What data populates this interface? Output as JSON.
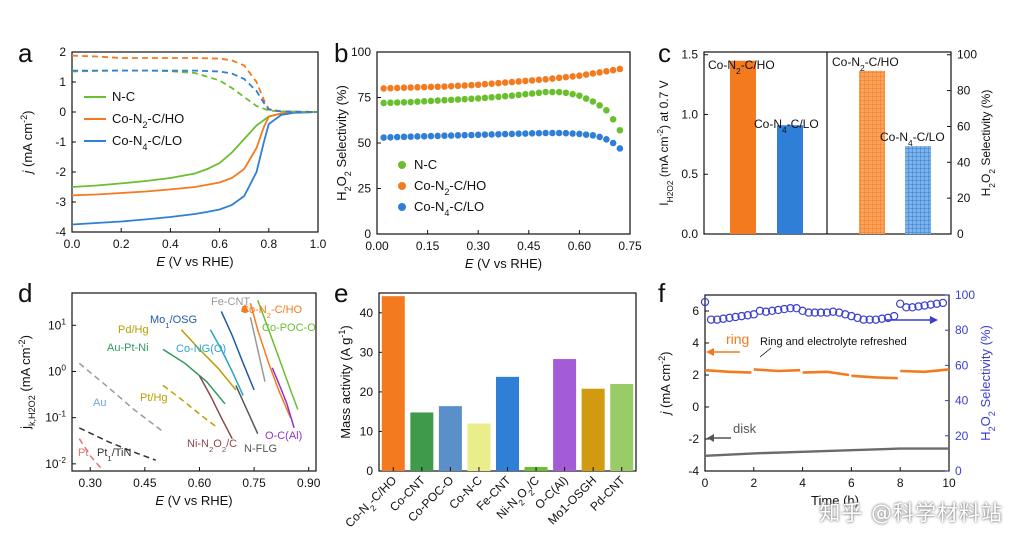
{
  "figure": {
    "watermark": "知乎 @科学材料站",
    "panel_letters": [
      "a",
      "b",
      "c",
      "d",
      "e",
      "f"
    ]
  },
  "colors": {
    "nc": "#6abf2e",
    "ho": "#f47a20",
    "lo": "#2f7fd6",
    "disk": "#6b6b6b",
    "ring": "#f47a20",
    "selectivity": "#3b3fcf"
  },
  "chart_data": [
    {
      "panel": "a",
      "type": "line",
      "xlabel": "E (V vs RHE)",
      "ylabel": "j (mA cm-2)",
      "xlim": [
        0,
        1.0
      ],
      "ylim": [
        -4,
        2
      ],
      "xticks": [
        "0.0",
        "0.2",
        "0.4",
        "0.6",
        "0.8",
        "1.0"
      ],
      "yticks": [
        "-4",
        "-3",
        "-2",
        "-1",
        "0",
        "1",
        "2"
      ],
      "legend": [
        "N-C",
        "Co-N2-C/HO",
        "Co-N4-C/LO"
      ],
      "series": [
        {
          "name": "N-C",
          "style": "solid",
          "color": "#6abf2e",
          "x": [
            0,
            0.1,
            0.2,
            0.3,
            0.4,
            0.5,
            0.55,
            0.6,
            0.65,
            0.7,
            0.75,
            0.8,
            0.85,
            0.9,
            1.0
          ],
          "y": [
            -2.5,
            -2.45,
            -2.38,
            -2.3,
            -2.2,
            -2.05,
            -1.9,
            -1.7,
            -1.35,
            -0.9,
            -0.45,
            -0.15,
            -0.05,
            -0.02,
            0
          ]
        },
        {
          "name": "Co-N2-C/HO",
          "style": "solid",
          "color": "#f47a20",
          "x": [
            0,
            0.1,
            0.2,
            0.3,
            0.4,
            0.5,
            0.6,
            0.65,
            0.7,
            0.75,
            0.78,
            0.8,
            0.85,
            0.9,
            1.0
          ],
          "y": [
            -2.78,
            -2.75,
            -2.7,
            -2.65,
            -2.58,
            -2.5,
            -2.35,
            -2.2,
            -1.9,
            -1.2,
            -0.5,
            -0.15,
            -0.05,
            -0.02,
            0
          ]
        },
        {
          "name": "Co-N4-C/LO",
          "style": "solid",
          "color": "#2f7fd6",
          "x": [
            0,
            0.1,
            0.2,
            0.3,
            0.4,
            0.5,
            0.55,
            0.6,
            0.65,
            0.7,
            0.75,
            0.78,
            0.8,
            0.85,
            0.9,
            1.0
          ],
          "y": [
            -3.75,
            -3.7,
            -3.65,
            -3.58,
            -3.5,
            -3.4,
            -3.33,
            -3.25,
            -3.1,
            -2.8,
            -2.0,
            -1.0,
            -0.4,
            -0.1,
            -0.03,
            0
          ]
        },
        {
          "name": "N-C ring",
          "style": "dashed",
          "color": "#6abf2e",
          "x": [
            0,
            0.1,
            0.2,
            0.3,
            0.4,
            0.5,
            0.6,
            0.65,
            0.7,
            0.75,
            0.8,
            0.85,
            1.0
          ],
          "y": [
            1.35,
            1.37,
            1.38,
            1.38,
            1.36,
            1.3,
            1.05,
            0.8,
            0.5,
            0.2,
            0.05,
            0.02,
            0
          ]
        },
        {
          "name": "Co-N2-C/HO ring",
          "style": "dashed",
          "color": "#f47a20",
          "x": [
            0,
            0.1,
            0.2,
            0.3,
            0.4,
            0.5,
            0.6,
            0.65,
            0.7,
            0.75,
            0.78,
            0.8,
            0.85,
            1.0
          ],
          "y": [
            1.88,
            1.85,
            1.8,
            1.8,
            1.8,
            1.8,
            1.78,
            1.72,
            1.55,
            1.0,
            0.4,
            0.1,
            0.02,
            0
          ]
        },
        {
          "name": "Co-N4-C/LO ring",
          "style": "dashed",
          "color": "#2f7fd6",
          "x": [
            0,
            0.1,
            0.2,
            0.3,
            0.4,
            0.5,
            0.6,
            0.65,
            0.7,
            0.75,
            0.78,
            0.8,
            0.85,
            1.0
          ],
          "y": [
            1.38,
            1.38,
            1.38,
            1.38,
            1.38,
            1.38,
            1.35,
            1.28,
            1.1,
            0.7,
            0.3,
            0.08,
            0.02,
            0
          ]
        }
      ]
    },
    {
      "panel": "b",
      "type": "scatter",
      "xlabel": "E (V vs RHE)",
      "ylabel": "H2O2 Selectivity (%)",
      "xlim": [
        0,
        0.75
      ],
      "ylim": [
        0,
        100
      ],
      "xticks": [
        "0.00",
        "0.15",
        "0.30",
        "0.45",
        "0.60",
        "0.75"
      ],
      "yticks": [
        "0",
        "25",
        "50",
        "75",
        "100"
      ],
      "legend": [
        "N-C",
        "Co-N2-C/HO",
        "Co-N4-C/LO"
      ],
      "series": [
        {
          "name": "N-C",
          "color": "#6abf2e",
          "x": [
            0.02,
            0.1,
            0.2,
            0.3,
            0.4,
            0.45,
            0.5,
            0.55,
            0.6,
            0.65,
            0.68,
            0.7,
            0.72,
            0.73
          ],
          "y": [
            72,
            72.5,
            73.5,
            74.5,
            76,
            77,
            78,
            78,
            76,
            72,
            68,
            63,
            57,
            52
          ]
        },
        {
          "name": "Co-N2-C/HO",
          "color": "#f47a20",
          "x": [
            0.02,
            0.1,
            0.2,
            0.3,
            0.4,
            0.5,
            0.6,
            0.65,
            0.7,
            0.73
          ],
          "y": [
            80,
            80.5,
            81,
            82,
            83.5,
            85,
            87,
            88.5,
            90,
            91
          ]
        },
        {
          "name": "Co-N4-C/LO",
          "color": "#2f7fd6",
          "x": [
            0.02,
            0.1,
            0.2,
            0.3,
            0.4,
            0.5,
            0.55,
            0.6,
            0.65,
            0.68,
            0.7,
            0.72,
            0.73
          ],
          "y": [
            53,
            53.5,
            54,
            54.5,
            55,
            55.5,
            55.5,
            55,
            54,
            52,
            50,
            47,
            43
          ]
        }
      ]
    },
    {
      "panel": "c",
      "type": "bar",
      "ylabel_left": "I H2O2 (mA cm-2) at 0.7 V",
      "ylabel_right": "H2O2 Selectivity (%)",
      "ylim_left": [
        0,
        1.5
      ],
      "ylim_right": [
        0,
        100
      ],
      "yticks_left": [
        "0.0",
        "0.5",
        "1.0",
        "1.5"
      ],
      "yticks_right": [
        "0",
        "20",
        "40",
        "60",
        "80",
        "100"
      ],
      "groups": [
        {
          "axis": "left",
          "bars": [
            {
              "name": "Co-N2-C/HO",
              "value": 1.45,
              "color": "#f47a20"
            },
            {
              "name": "Co-N4-C/LO",
              "value": 0.91,
              "color": "#2f7fd6"
            }
          ]
        },
        {
          "axis": "right",
          "bars": [
            {
              "name": "Co-N2-C/HO",
              "value": 91,
              "color": "#f47a20",
              "pattern": "grid"
            },
            {
              "name": "Co-N4-C/LO",
              "value": 49,
              "color": "#2f7fd6",
              "pattern": "grid"
            }
          ]
        }
      ]
    },
    {
      "panel": "d",
      "type": "line",
      "xlabel": "E (V vs RHE)",
      "ylabel": "jk,H2O2 (mA cm-2)",
      "scale": "log",
      "xlim": [
        0.25,
        0.92
      ],
      "ylim": [
        0.007,
        50
      ],
      "xticks": [
        "0.30",
        "0.45",
        "0.60",
        "0.75",
        "0.90"
      ],
      "yticks": [
        "10-2",
        "10-1",
        "100",
        "101"
      ],
      "series": [
        {
          "name": "Co-N2-C/HO",
          "color": "#f47a20",
          "x": [
            0.74,
            0.76,
            0.79,
            0.82,
            0.85
          ],
          "y": [
            30,
            8,
            1.5,
            0.35,
            0.1
          ]
        },
        {
          "name": "Co-POC-O",
          "color": "#6abf2e",
          "x": [
            0.76,
            0.79,
            0.82,
            0.85,
            0.87
          ],
          "y": [
            35,
            8,
            1.8,
            0.4,
            0.15
          ]
        },
        {
          "name": "O-C(Al)",
          "color": "#8e35c8",
          "x": [
            0.8,
            0.82,
            0.84,
            0.86
          ],
          "y": [
            1.2,
            0.5,
            0.2,
            0.06
          ]
        },
        {
          "name": "Fe-CNT",
          "color": "#999999",
          "x": [
            0.74,
            0.76,
            0.78
          ],
          "y": [
            15,
            3,
            0.6
          ]
        },
        {
          "name": "Mo1/OSG",
          "color": "#1e5aa8",
          "x": [
            0.66,
            0.69,
            0.72,
            0.75
          ],
          "y": [
            20,
            6,
            1.5,
            0.4
          ]
        },
        {
          "name": "Co-NG(O)",
          "color": "#2aa5c8",
          "x": [
            0.63,
            0.66,
            0.69,
            0.72
          ],
          "y": [
            8,
            3,
            1,
            0.3
          ]
        },
        {
          "name": "Pd/Hg",
          "color": "#b8a000",
          "x": [
            0.55,
            0.6,
            0.65,
            0.7
          ],
          "y": [
            8,
            3,
            1.2,
            0.4
          ]
        },
        {
          "name": "Au-Pt-Ni",
          "color": "#2f9a5c",
          "x": [
            0.5,
            0.56,
            0.62,
            0.67
          ],
          "y": [
            3,
            1.5,
            0.6,
            0.2
          ]
        },
        {
          "name": "Pt/Hg",
          "color": "#b8a000",
          "style": "dashed",
          "x": [
            0.5,
            0.55,
            0.6,
            0.65
          ],
          "y": [
            0.5,
            0.25,
            0.12,
            0.06
          ]
        },
        {
          "name": "Ni-N2O2/C",
          "color": "#8b4a4a",
          "x": [
            0.6,
            0.63,
            0.66,
            0.69
          ],
          "y": [
            0.8,
            0.3,
            0.1,
            0.035
          ]
        },
        {
          "name": "N-FLG",
          "color": "#555555",
          "x": [
            0.7,
            0.73,
            0.76
          ],
          "y": [
            0.5,
            0.15,
            0.045
          ]
        },
        {
          "name": "Au",
          "color": "#9a9a9a",
          "style": "dashed",
          "x": [
            0.27,
            0.35,
            0.42,
            0.5
          ],
          "y": [
            1.5,
            0.45,
            0.15,
            0.05
          ]
        },
        {
          "name": "Pt1/TiN",
          "color": "#333333",
          "style": "dashed",
          "x": [
            0.27,
            0.35,
            0.42,
            0.48
          ],
          "y": [
            0.06,
            0.03,
            0.018,
            0.012
          ]
        },
        {
          "name": "Pt",
          "color": "#e57373",
          "style": "dashed",
          "x": [
            0.27,
            0.3,
            0.33
          ],
          "y": [
            0.035,
            0.015,
            0.008
          ]
        }
      ],
      "annotations": [
        "Fe-CNT",
        "Co-N2-C/HO",
        "Mo1/OSG",
        "Co-POC-O",
        "Pd/Hg",
        "Co-NG(O)",
        "Au-Pt-Ni",
        "Pt/Hg",
        "Au",
        "Ni-N2O2/C",
        "N-FLG",
        "O-C(Al)",
        "Pt",
        "Pt1/TiN"
      ]
    },
    {
      "panel": "e",
      "type": "bar",
      "ylabel": "Mass activity (A g-1)",
      "ylim": [
        0,
        45
      ],
      "yticks": [
        "0",
        "10",
        "20",
        "30",
        "40"
      ],
      "categories": [
        "Co-N2-C/HO",
        "Co-CNT",
        "Co-POC-O",
        "Co-N-C",
        "Fe-CNT",
        "Ni-N2O2/C",
        "O-C(Al)",
        "Mo1-OSGH",
        "Pd-CNT"
      ],
      "values": [
        44.2,
        14.8,
        16.4,
        12,
        23.8,
        1,
        28.3,
        20.8,
        22
      ],
      "colors": [
        "#f47a20",
        "#3f9a4b",
        "#5b8fc9",
        "#e9ee8a",
        "#2f7fd6",
        "#6abf2e",
        "#a35bd6",
        "#d19a10",
        "#99cc66"
      ]
    },
    {
      "panel": "f",
      "type": "line",
      "xlabel": "Time (h)",
      "ylabel_left": "j (mA cm-2)",
      "ylabel_right": "H2O2 Selectivity (%)",
      "xlim": [
        0,
        10
      ],
      "ylim_left": [
        -4,
        7
      ],
      "ylim_right": [
        0,
        100
      ],
      "xticks": [
        "0",
        "2",
        "4",
        "6",
        "8",
        "10"
      ],
      "yticks_left": [
        "-4",
        "-2",
        "0",
        "2",
        "4",
        "6"
      ],
      "yticks_right": [
        "0",
        "20",
        "40",
        "60",
        "80",
        "100"
      ],
      "annotations": {
        "ring": "ring",
        "disk": "disk",
        "note": "Ring and electrolyte refreshed"
      },
      "series": [
        {
          "name": "ring",
          "color": "#f47a20",
          "x": [
            0,
            1,
            1.9,
            2,
            3,
            3.9,
            4,
            5,
            5.9,
            6,
            7,
            7.9,
            8,
            9,
            10
          ],
          "y": [
            2.3,
            2.2,
            2.15,
            2.35,
            2.25,
            2.3,
            2.15,
            2.2,
            2.0,
            1.95,
            1.85,
            1.8,
            2.25,
            2.2,
            2.35
          ]
        },
        {
          "name": "disk",
          "color": "#6b6b6b",
          "x": [
            0,
            2,
            4,
            6,
            8,
            10
          ],
          "y": [
            -3.05,
            -2.9,
            -2.8,
            -2.7,
            -2.6,
            -2.6
          ]
        },
        {
          "name": "selectivity",
          "color": "#3b3fcf",
          "axis": "right",
          "x": [
            0,
            0.25,
            0.5,
            0.75,
            1,
            1.25,
            1.5,
            1.75,
            2,
            2.25,
            2.5,
            2.75,
            3,
            3.25,
            3.5,
            3.75,
            4,
            4.25,
            4.5,
            4.75,
            5,
            5.25,
            5.5,
            5.75,
            6,
            6.25,
            6.5,
            6.75,
            7,
            7.25,
            7.5,
            7.75,
            8,
            8.25,
            8.5,
            8.75,
            9,
            9.25,
            9.5,
            9.75
          ],
          "y": [
            96,
            86,
            86,
            86.5,
            87,
            87.5,
            88,
            88.5,
            89,
            91,
            90.5,
            91,
            91.5,
            92,
            92.5,
            92.5,
            91,
            90,
            90,
            90,
            90,
            90.5,
            90,
            89,
            88,
            87,
            86,
            86,
            86,
            86.5,
            87,
            88,
            95,
            93,
            93,
            93.5,
            94,
            94.5,
            95,
            95.5
          ]
        }
      ]
    }
  ]
}
